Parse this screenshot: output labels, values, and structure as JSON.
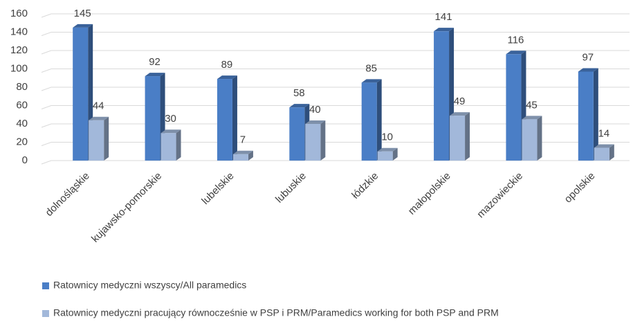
{
  "chart_data": {
    "type": "bar",
    "categories": [
      "dolnośląskie",
      "kujawsko-pomorskie",
      "lubelskie",
      "lubuskie",
      "łódzkie",
      "małopolskie",
      "mazowieckie",
      "opolskie"
    ],
    "series": [
      {
        "name": "Ratownicy medyczni wszyscy/All paramedics",
        "color": "#4a7ec6",
        "values": [
          145,
          92,
          89,
          58,
          85,
          141,
          116,
          97
        ]
      },
      {
        "name": "Ratownicy medyczni pracujący równocześnie w PSP i PRM/Paramedics working for both PSP and PRM",
        "color": "#a2b8da",
        "values": [
          44,
          30,
          7,
          40,
          10,
          49,
          45,
          14
        ]
      }
    ],
    "ylim": [
      0,
      160
    ],
    "yticks": [
      0,
      20,
      40,
      60,
      80,
      100,
      120,
      140,
      160
    ],
    "grid": true,
    "legend": "bottom"
  }
}
